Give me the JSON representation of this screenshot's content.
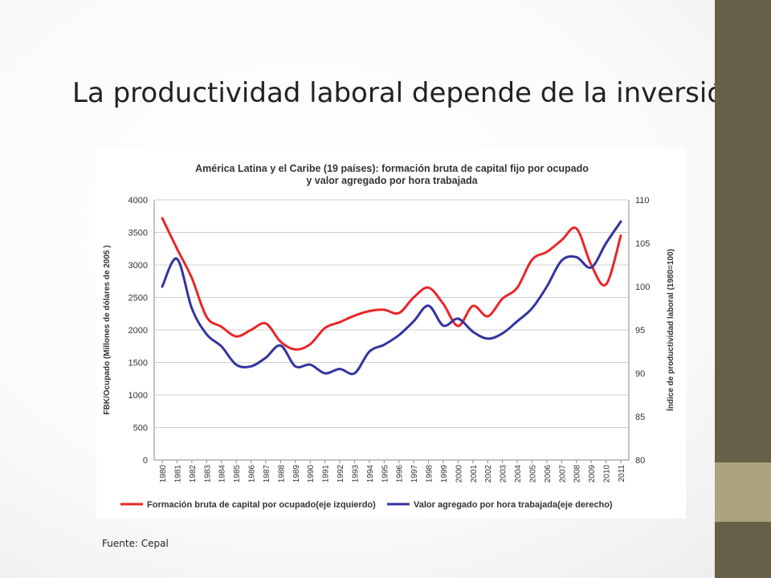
{
  "slide": {
    "title": "La productividad laboral depende de la inversión",
    "source": "Fuente: Cepal"
  },
  "colors": {
    "side_bar": "#675f48",
    "side_accent": "#aba47f",
    "series_red": "#e8262a",
    "series_blue": "#3333a0"
  },
  "chart_data": {
    "type": "line",
    "title_lines": [
      "América Latina y el Caribe (19 países): formación bruta de capital fijo  por ocupado",
      "y valor agregado por hora trabajada"
    ],
    "ylabel_left": "FBK/Ocupado (Millones de dólares de 2005 )",
    "ylabel_right": "Índice de productividad laboral (1980=100)",
    "ylim_left": [
      0,
      4000
    ],
    "yticks_left": [
      0,
      500,
      1000,
      1500,
      2000,
      2500,
      3000,
      3500,
      4000
    ],
    "ylim_right": [
      80,
      110
    ],
    "yticks_right": [
      80,
      85,
      90,
      95,
      100,
      105,
      110
    ],
    "categories": [
      "1980",
      "1981",
      "1982",
      "1983",
      "1984",
      "1985",
      "1986",
      "1987",
      "1988",
      "1989",
      "1990",
      "1991",
      "1992",
      "1993",
      "1994",
      "1995",
      "1996",
      "1997",
      "1998",
      "1999",
      "2000",
      "2001",
      "2002",
      "2003",
      "2004",
      "2005",
      "2006",
      "2007",
      "2008",
      "2009",
      "2010",
      "2011"
    ],
    "grid": true,
    "legend_position": "bottom",
    "series": [
      {
        "name": "Formación bruta de capital por ocupado(eje izquierdo)",
        "axis": "left",
        "color": "#e8262a",
        "values": [
          3720,
          3250,
          2800,
          2200,
          2050,
          1900,
          2000,
          2100,
          1820,
          1700,
          1780,
          2030,
          2120,
          2220,
          2290,
          2310,
          2260,
          2500,
          2650,
          2400,
          2060,
          2370,
          2210,
          2480,
          2650,
          3080,
          3200,
          3380,
          3560,
          3000,
          2700,
          3450
        ]
      },
      {
        "name": "Valor agregado por hora trabajada(eje derecho)",
        "axis": "right",
        "color": "#3333a0",
        "values": [
          100.0,
          103.2,
          97.5,
          94.5,
          93.1,
          91.0,
          90.8,
          91.8,
          93.2,
          90.8,
          91.0,
          90.0,
          90.5,
          90.0,
          92.5,
          93.3,
          94.4,
          96.0,
          97.8,
          95.5,
          96.3,
          94.8,
          94.0,
          94.6,
          96.0,
          97.5,
          100.0,
          103.0,
          103.4,
          102.2,
          105.0,
          107.5
        ]
      }
    ]
  }
}
